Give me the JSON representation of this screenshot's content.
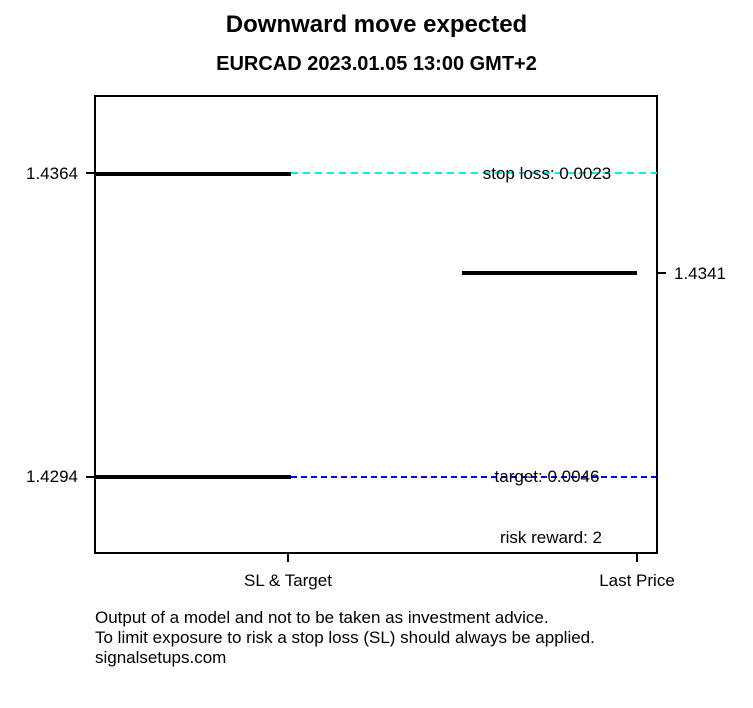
{
  "title": "Downward move expected",
  "subtitle": "EURCAD 2023.01.05 13:00 GMT+2",
  "axis": {
    "left_top_label": "1.4364",
    "left_bottom_label": "1.4294",
    "right_label": "1.4341",
    "x_left_label": "SL & Target",
    "x_right_label": "Last Price"
  },
  "annotations": {
    "stop_loss": "stop loss: 0.0023",
    "target": "target: 0.0046",
    "risk_reward": "risk reward: 2"
  },
  "footer": {
    "line1": "Output of a model and not to be taken as investment advice.",
    "line2": "To limit exposure to risk a stop loss (SL) should always be applied.",
    "line3": "signalsetups.com"
  },
  "colors": {
    "stop_loss_dash": "#00EEEE",
    "target_dash": "#0000FF",
    "price_segment": "#000000",
    "background": "#FFFFFF"
  },
  "chart_data": {
    "type": "line",
    "title": "Downward move expected",
    "subtitle": "EURCAD 2023.01.05 13:00 GMT+2",
    "direction": "down",
    "categories": [
      "SL & Target",
      "Last Price"
    ],
    "series": [
      {
        "name": "stop loss",
        "category": "SL & Target",
        "value": 1.4364,
        "distance_from_last_price": 0.0023,
        "segment_style": "solid black horizontal segment",
        "level_line": {
          "style": "dashed",
          "color": "#00EEEE",
          "extends_to": "right edge"
        }
      },
      {
        "name": "target",
        "category": "SL & Target",
        "value": 1.4294,
        "distance_from_last_price": 0.0046,
        "segment_style": "solid black horizontal segment",
        "level_line": {
          "style": "dashed",
          "color": "#0000FF",
          "extends_to": "right edge"
        }
      },
      {
        "name": "last price",
        "category": "Last Price",
        "value": 1.4341,
        "segment_style": "solid black horizontal segment",
        "level_line": null
      }
    ],
    "risk_reward": 2,
    "y_axis": {
      "left_tick_values": [
        1.4364,
        1.4294
      ],
      "right_tick_values": [
        1.4341
      ],
      "ylim": [
        1.4276,
        1.4382
      ]
    },
    "x_axis": {
      "tick_labels": [
        "SL & Target",
        "Last Price"
      ]
    },
    "grid": false,
    "legend": "none"
  }
}
